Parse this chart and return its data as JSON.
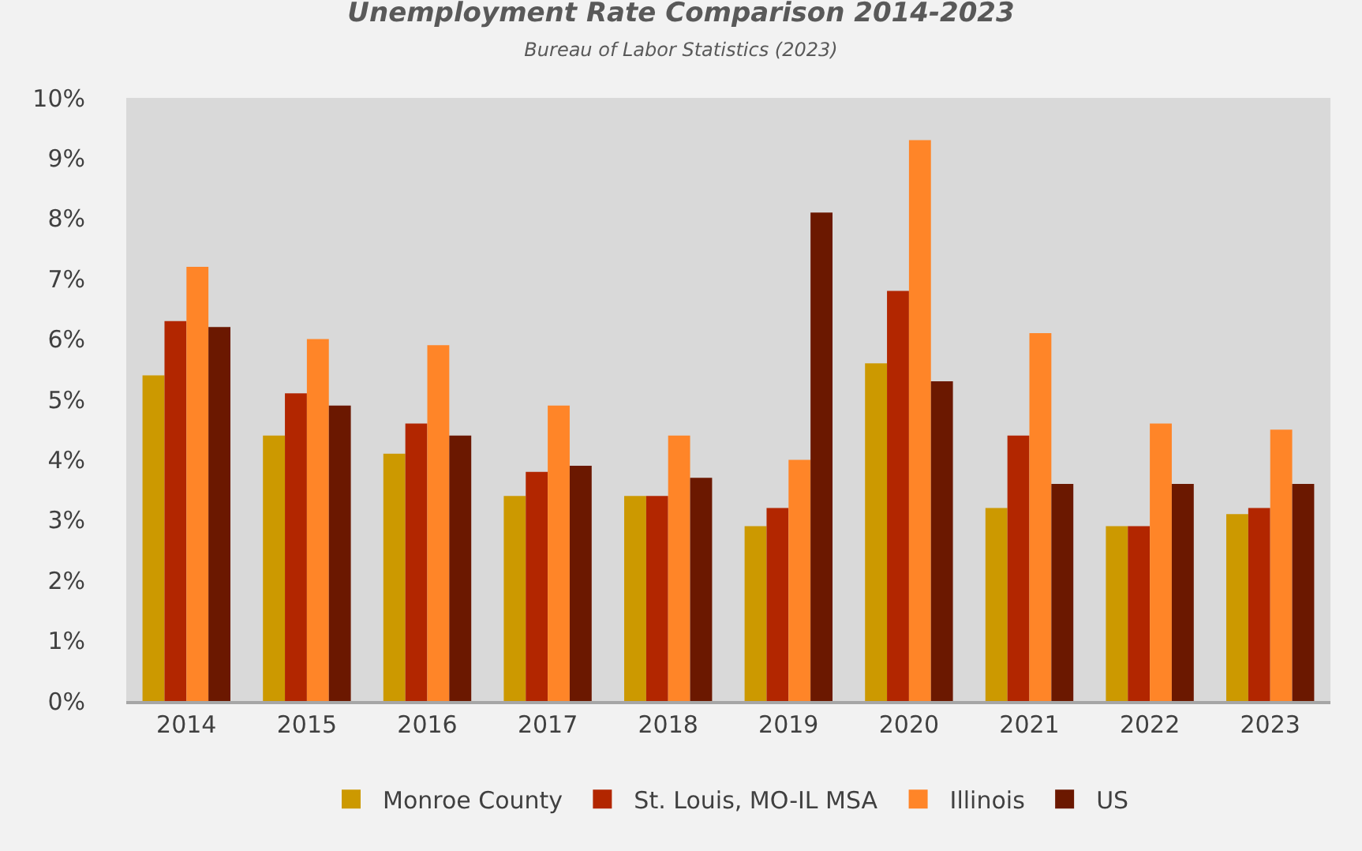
{
  "chart_data": {
    "type": "bar",
    "title": "Unemployment Rate Comparison 2014-2023",
    "subtitle": "Bureau of Labor Statistics (2023)",
    "categories": [
      "2014",
      "2015",
      "2016",
      "2017",
      "2018",
      "2019",
      "2020",
      "2021",
      "2022",
      "2023"
    ],
    "series": [
      {
        "name": "Monroe County",
        "color": "#cc9900",
        "values": [
          5.4,
          4.4,
          4.1,
          3.4,
          3.4,
          2.9,
          5.6,
          3.2,
          2.9,
          3.1
        ]
      },
      {
        "name": "St. Louis, MO-IL MSA",
        "color": "#b22600",
        "values": [
          6.3,
          5.1,
          4.6,
          3.8,
          3.4,
          3.2,
          6.8,
          4.4,
          2.9,
          3.2
        ]
      },
      {
        "name": "Illinois",
        "color": "#ff8528",
        "values": [
          7.2,
          6.0,
          5.9,
          4.9,
          4.4,
          4.0,
          9.3,
          6.1,
          4.6,
          4.5
        ]
      },
      {
        "name": "US",
        "color": "#6b1800",
        "values": [
          6.2,
          4.9,
          4.4,
          3.9,
          3.7,
          8.1,
          5.3,
          3.6,
          3.6,
          3.6
        ]
      }
    ],
    "ylim": [
      0,
      10
    ],
    "yticks": [
      {
        "value": 0,
        "label": "0%"
      },
      {
        "value": 1,
        "label": "1%"
      },
      {
        "value": 2,
        "label": "2%"
      },
      {
        "value": 3,
        "label": "3%"
      },
      {
        "value": 4,
        "label": "4%"
      },
      {
        "value": 5,
        "label": "5%"
      },
      {
        "value": 6,
        "label": "6%"
      },
      {
        "value": 7,
        "label": "7%"
      },
      {
        "value": 8,
        "label": "8%"
      },
      {
        "value": 9,
        "label": "9%"
      },
      {
        "value": 10,
        "label": "10%"
      }
    ],
    "grid": false,
    "legend": "bottom"
  }
}
